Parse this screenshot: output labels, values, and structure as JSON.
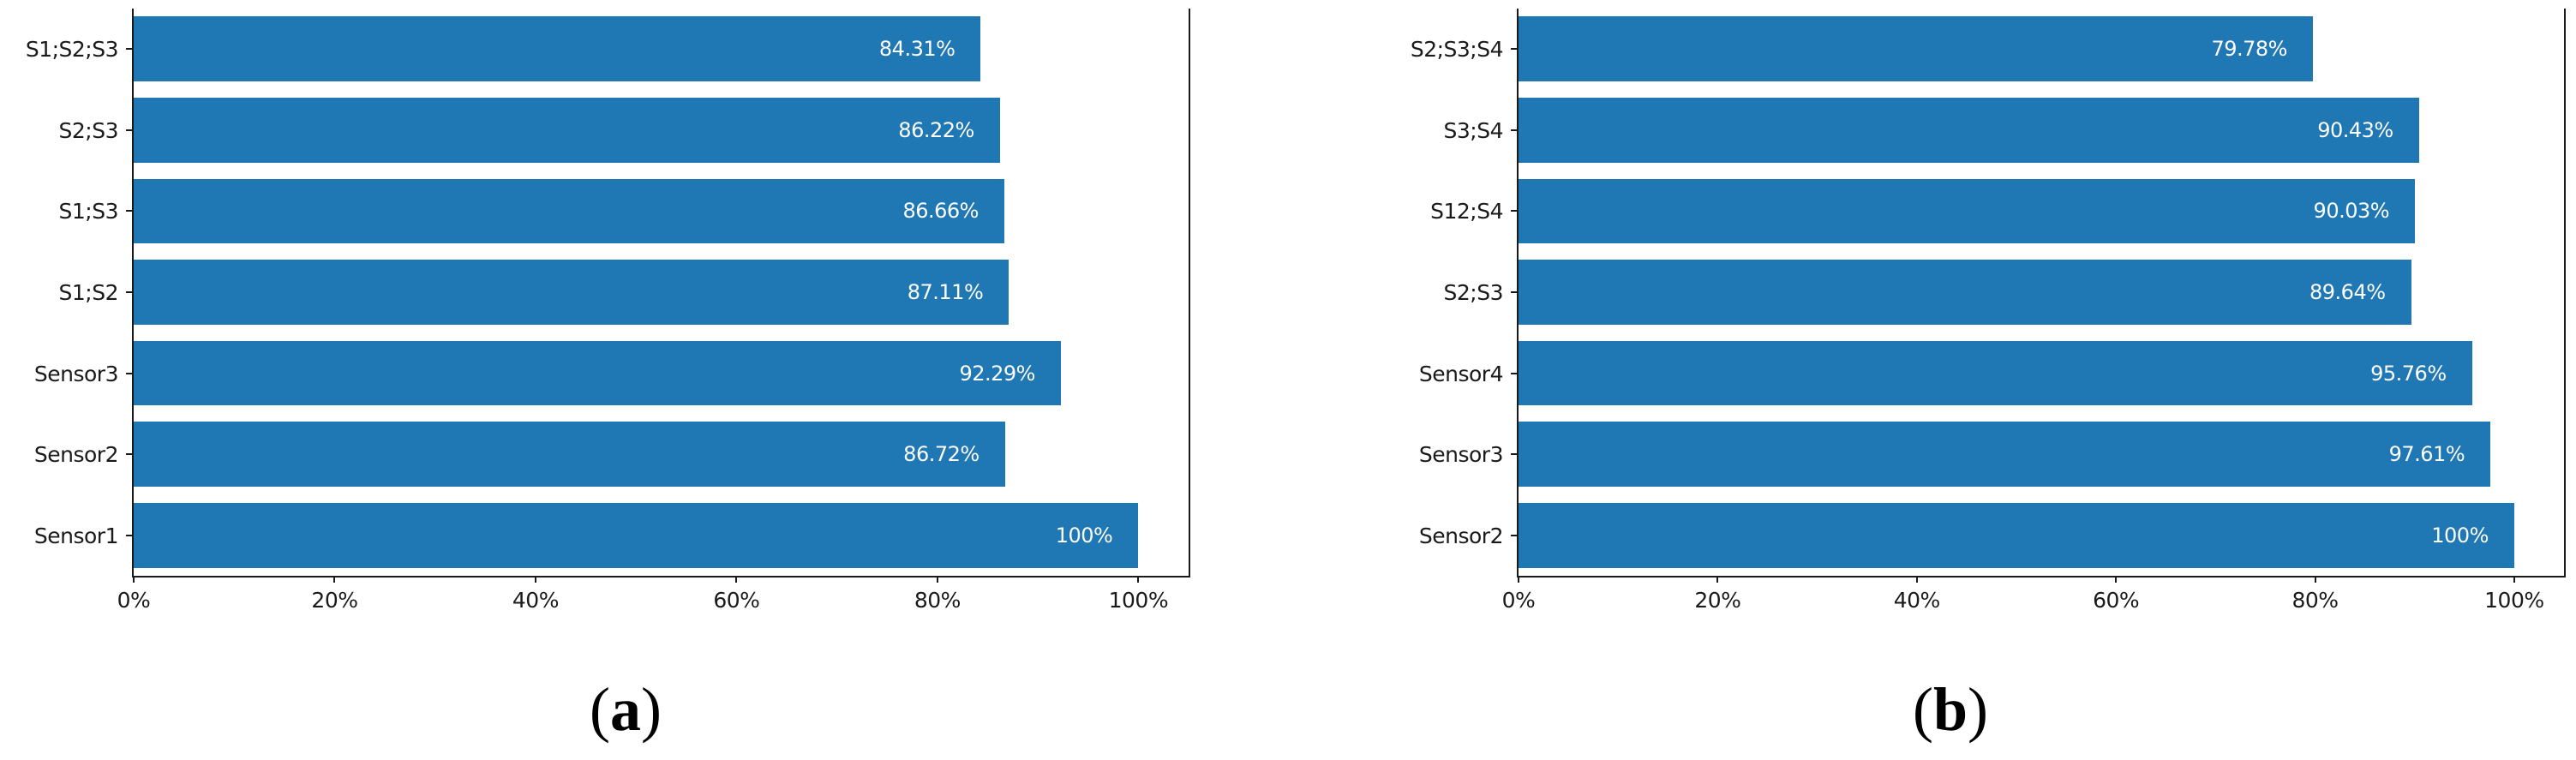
{
  "figure": {
    "background": "#ffffff",
    "spine_color": "#1a1a1a",
    "text_color": "#1a1a1a"
  },
  "captions": {
    "a": {
      "open": "(",
      "letter": "a",
      "close": ")"
    },
    "b": {
      "open": "(",
      "letter": "b",
      "close": ")"
    }
  },
  "chart_data": [
    {
      "type": "bar",
      "orientation": "horizontal",
      "panel": "a",
      "title": "",
      "xlabel": "",
      "ylabel": "",
      "order": "top-to-bottom",
      "categories": [
        "S1;S2;S3",
        "S2;S3",
        "S1;S3",
        "S1;S2",
        "Sensor3",
        "Sensor2",
        "Sensor1"
      ],
      "values": [
        84.31,
        86.22,
        86.66,
        87.11,
        92.29,
        86.72,
        100
      ],
      "bar_labels": [
        "84.31%",
        "86.22%",
        "86.66%",
        "87.11%",
        "92.29%",
        "86.72%",
        "100%"
      ],
      "xtick_labels": [
        "0%",
        "20%",
        "40%",
        "60%",
        "80%",
        "100%"
      ],
      "xtick_values": [
        0,
        20,
        40,
        60,
        80,
        100
      ],
      "xlim": [
        0,
        105
      ],
      "grid": false,
      "legend": false,
      "bar_color": "#1f77b4",
      "bar_label_color": "#ffffff"
    },
    {
      "type": "bar",
      "orientation": "horizontal",
      "panel": "b",
      "title": "",
      "xlabel": "",
      "ylabel": "",
      "order": "top-to-bottom",
      "categories": [
        "S2;S3;S4",
        "S3;S4",
        "S12;S4",
        "S2;S3",
        "Sensor4",
        "Sensor3",
        "Sensor2"
      ],
      "values": [
        79.78,
        90.43,
        90.03,
        89.64,
        95.76,
        97.61,
        100
      ],
      "bar_labels": [
        "79.78%",
        "90.43%",
        "90.03%",
        "89.64%",
        "95.76%",
        "97.61%",
        "100%"
      ],
      "xtick_labels": [
        "0%",
        "20%",
        "40%",
        "60%",
        "80%",
        "100%"
      ],
      "xtick_values": [
        0,
        20,
        40,
        60,
        80,
        100
      ],
      "xlim": [
        0,
        105
      ],
      "grid": false,
      "legend": false,
      "bar_color": "#1f77b4",
      "bar_label_color": "#ffffff"
    }
  ]
}
